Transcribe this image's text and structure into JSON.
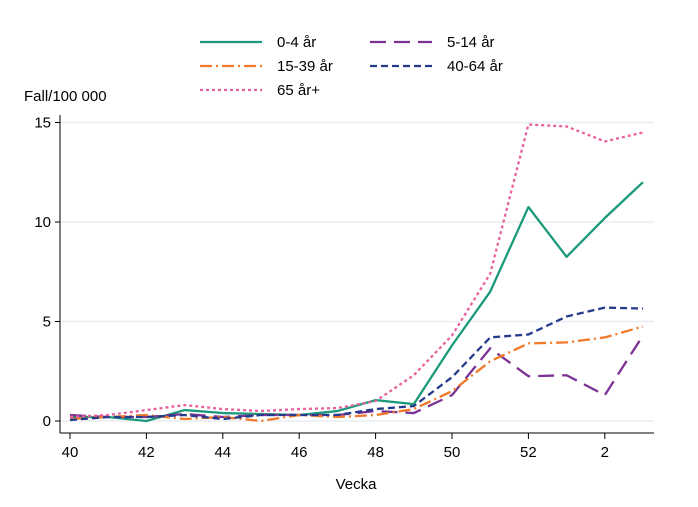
{
  "chart_data": {
    "type": "line",
    "title": "",
    "xlabel": "Vecka",
    "ylabel": "Fall/100 000",
    "x": [
      "40",
      "41",
      "42",
      "43",
      "44",
      "45",
      "46",
      "47",
      "48",
      "49",
      "50",
      "51",
      "52",
      "1",
      "2",
      "3"
    ],
    "xticks": [
      "40",
      "42",
      "44",
      "46",
      "48",
      "50",
      "52",
      "2"
    ],
    "yticks": [
      0,
      5,
      10,
      15
    ],
    "ylim": [
      0,
      15.5
    ],
    "grid": true,
    "legend_position": "top",
    "series": [
      {
        "name": "0-4 år",
        "color": "#1a9a7a",
        "dash": "",
        "values": [
          0.2,
          0.2,
          0.0,
          0.55,
          0.4,
          0.35,
          0.3,
          0.5,
          1.05,
          0.85,
          3.8,
          6.5,
          10.75,
          8.25,
          10.2,
          12.0
        ]
      },
      {
        "name": "5-14 år",
        "color": "#7b3294",
        "dash": "16 8",
        "values": [
          0.3,
          0.2,
          0.2,
          0.35,
          0.2,
          0.3,
          0.3,
          0.3,
          0.5,
          0.4,
          1.3,
          3.65,
          2.25,
          2.3,
          1.3,
          4.3
        ]
      },
      {
        "name": "15-39 år",
        "color": "#f07a2a",
        "dash": "12 4 2 4",
        "values": [
          0.1,
          0.2,
          0.3,
          0.1,
          0.2,
          0.0,
          0.3,
          0.2,
          0.3,
          0.6,
          1.5,
          3.0,
          3.9,
          3.95,
          4.2,
          4.75
        ]
      },
      {
        "name": "40-64 år",
        "color": "#243b8c",
        "dash": "7 4",
        "values": [
          0.05,
          0.2,
          0.2,
          0.3,
          0.1,
          0.3,
          0.3,
          0.3,
          0.6,
          0.75,
          2.2,
          4.2,
          4.35,
          5.25,
          5.7,
          5.65
        ]
      },
      {
        "name": "65 år+",
        "color": "#e8609e",
        "dash": "3 3",
        "values": [
          0.2,
          0.3,
          0.55,
          0.8,
          0.6,
          0.5,
          0.6,
          0.65,
          1.0,
          2.3,
          4.3,
          7.4,
          14.9,
          14.8,
          14.05,
          14.5
        ]
      }
    ]
  }
}
